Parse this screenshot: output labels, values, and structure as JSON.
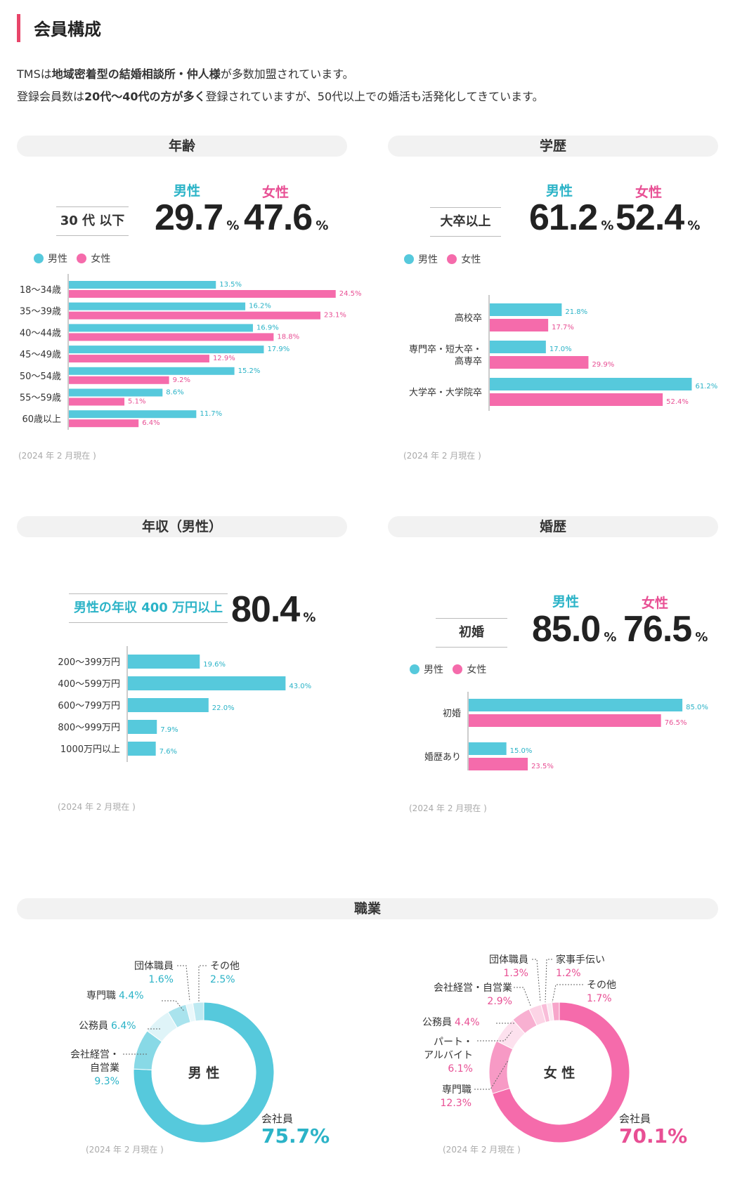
{
  "page": {
    "title": "会員構成",
    "intro_line1_parts": [
      "TMSは",
      "地域密着型の結婚相談所・仲人様",
      "が多数加盟されています。"
    ],
    "intro_line2_parts": [
      "登録会員数は",
      "20代〜40代の方が多く",
      "登録されていますが、50代以上での婚活も活発化してきています。"
    ],
    "note": "(2024 年 2 月現在 )",
    "colors": {
      "male": "#56c9dc",
      "female": "#f56bab",
      "accent": "#e8456a"
    }
  },
  "age": {
    "title": "年齢",
    "male_label": "男性",
    "female_label": "女性",
    "box_label": "30 代 以下",
    "male_value": "29.7",
    "female_value": "47.6",
    "unit": "%",
    "legend_male": "男性",
    "legend_female": "女性"
  },
  "education": {
    "title": "学歴",
    "male_label": "男性",
    "female_label": "女性",
    "box_label": "大卒以上",
    "male_value": "61.2",
    "female_value": "52.4",
    "unit": "%",
    "legend_male": "男性",
    "legend_female": "女性"
  },
  "income": {
    "title": "年収（男性）",
    "box_label": "男性の年収 400 万円以上",
    "value": "80.4",
    "unit": "%"
  },
  "marriage": {
    "title": "婚歴",
    "male_label": "男性",
    "female_label": "女性",
    "box_label": "初婚",
    "male_value": "85.0",
    "female_value": "76.5",
    "unit": "%",
    "legend_male": "男性",
    "legend_female": "女性"
  },
  "occupation": {
    "title": "職業",
    "male_center": "男 性",
    "female_center": "女 性"
  },
  "chart_data": [
    {
      "id": "age",
      "type": "bar",
      "orientation": "horizontal",
      "categories": [
        "18〜34歳",
        "35〜39歳",
        "40〜44歳",
        "45〜49歳",
        "50〜54歳",
        "55〜59歳",
        "60歳以上"
      ],
      "series": [
        {
          "name": "男性",
          "values": [
            13.5,
            16.2,
            16.9,
            17.9,
            15.2,
            8.6,
            11.7
          ]
        },
        {
          "name": "女性",
          "values": [
            24.5,
            23.1,
            18.8,
            12.9,
            9.2,
            5.1,
            6.4
          ]
        }
      ],
      "labels": [
        [
          "13.5%",
          "16.2%",
          "16.9%",
          "17.9%",
          "15.2%",
          "8.6%",
          "11.7%"
        ],
        [
          "24.5%",
          "23.1%",
          "18.8%",
          "12.9%",
          "9.2%",
          "5.1%",
          "6.4%"
        ]
      ],
      "xlim": [
        0,
        30
      ]
    },
    {
      "id": "education",
      "type": "bar",
      "orientation": "horizontal",
      "categories": [
        [
          "高校卒"
        ],
        [
          "専門卒・短大卒・",
          "高専卒"
        ],
        [
          "大学卒・大学院卒"
        ]
      ],
      "series": [
        {
          "name": "男性",
          "values": [
            21.8,
            17.0,
            61.2
          ]
        },
        {
          "name": "女性",
          "values": [
            17.7,
            29.9,
            52.4
          ]
        }
      ],
      "labels": [
        [
          "21.8%",
          "17.0%",
          "61.2%"
        ],
        [
          "17.7%",
          "29.9%",
          "52.4%"
        ]
      ],
      "xlim": [
        0,
        66
      ]
    },
    {
      "id": "income",
      "type": "bar",
      "orientation": "horizontal",
      "categories": [
        "200〜399万円",
        "400〜599万円",
        "600〜799万円",
        "800〜999万円",
        "1000万円以上"
      ],
      "series": [
        {
          "name": "男性",
          "values": [
            19.6,
            43.0,
            22.0,
            7.9,
            7.6
          ]
        }
      ],
      "labels": [
        [
          "19.6%",
          "43.0%",
          "22.0%",
          "7.9%",
          "7.6%"
        ]
      ],
      "xlim": [
        0,
        55
      ]
    },
    {
      "id": "marriage",
      "type": "bar",
      "orientation": "horizontal",
      "categories": [
        [
          "初婚"
        ],
        [
          "婚歴あり"
        ]
      ],
      "series": [
        {
          "name": "男性",
          "values": [
            85.0,
            15.0
          ]
        },
        {
          "name": "女性",
          "values": [
            76.5,
            23.5
          ]
        }
      ],
      "labels": [
        [
          "85.0%",
          "15.0%"
        ],
        [
          "76.5%",
          "23.5%"
        ]
      ],
      "xlim": [
        0,
        90
      ]
    },
    {
      "id": "occupation-male",
      "type": "pie",
      "donut": true,
      "slices": [
        {
          "label": "会社員",
          "value": 75.7,
          "display": "75.7%",
          "color": "#56c9dc"
        },
        {
          "label": "会社経営・自営業",
          "value": 9.3,
          "display": "9.3%",
          "color": "#88d9e6"
        },
        {
          "label": "公務員",
          "value": 6.4,
          "display": "6.4%",
          "color": "#dff4f8"
        },
        {
          "label": "専門職",
          "value": 4.4,
          "display": "4.4%",
          "color": "#a9e3ed"
        },
        {
          "label": "団体職員",
          "value": 1.6,
          "display": "1.6%",
          "color": "#eaf8fb"
        },
        {
          "label": "その他",
          "value": 2.5,
          "display": "2.5%",
          "color": "#bde9f1"
        }
      ]
    },
    {
      "id": "occupation-female",
      "type": "pie",
      "donut": true,
      "slices": [
        {
          "label": "会社員",
          "value": 70.1,
          "display": "70.1%",
          "color": "#f56bab"
        },
        {
          "label": "専門職",
          "value": 12.3,
          "display": "12.3%",
          "color": "#f79ac5"
        },
        {
          "label": "パート・アルバイト",
          "value": 6.1,
          "display": "6.1%",
          "color": "#fde1ee"
        },
        {
          "label": "公務員",
          "value": 4.4,
          "display": "4.4%",
          "color": "#f8b0d1"
        },
        {
          "label": "会社経営・自営業",
          "value": 2.9,
          "display": "2.9%",
          "color": "#fcd4e6"
        },
        {
          "label": "団体職員",
          "value": 1.3,
          "display": "1.3%",
          "color": "#f9bdd9"
        },
        {
          "label": "家事手伝い",
          "value": 1.2,
          "display": "1.2%",
          "color": "#fbe8f1"
        },
        {
          "label": "その他",
          "value": 1.7,
          "display": "1.7%",
          "color": "#f7a5ca"
        }
      ]
    }
  ]
}
